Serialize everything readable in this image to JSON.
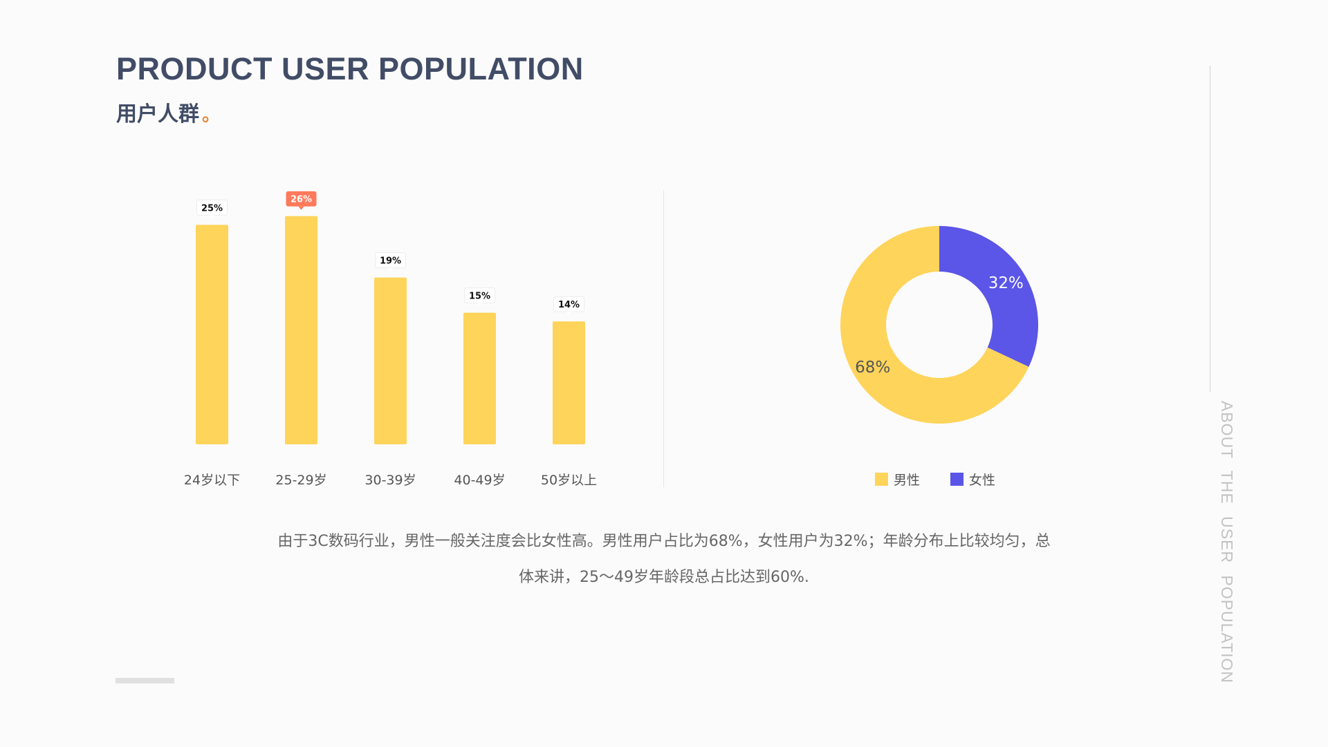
{
  "header": {
    "title_en": "PRODUCT USER POPULATION",
    "title_cn": "用户人群",
    "title_dot": "。"
  },
  "side": {
    "vertical_text": "ABOUT THE USER POPULATION"
  },
  "description": {
    "line1": "由于3C数码行业，男性一般关注度会比女性高。男性用户占比为68%，女性用户为32%；年龄分布上比较均匀，总",
    "line2": "体来讲，25～49岁年龄段总占比达到60%."
  },
  "colors": {
    "bar": "#ffd45a",
    "highlight_label": "#ff7a5c",
    "male": "#ffd45a",
    "female": "#5b55e8",
    "title": "#414c66"
  },
  "chart_data": [
    {
      "type": "bar",
      "categories": [
        "24岁以下",
        "25-29岁",
        "30-39岁",
        "40-49岁",
        "50岁以上"
      ],
      "values": [
        25,
        26,
        19,
        15,
        14
      ],
      "labels": [
        "25%",
        "26%",
        "19%",
        "15%",
        "14%"
      ],
      "highlight_index": 1,
      "ylim": [
        0,
        27
      ],
      "grid": false
    },
    {
      "type": "pie",
      "donut": true,
      "series": [
        {
          "name": "男性",
          "value": 68,
          "label": "68%"
        },
        {
          "name": "女性",
          "value": 32,
          "label": "32%"
        }
      ],
      "legend": "bottom"
    }
  ]
}
